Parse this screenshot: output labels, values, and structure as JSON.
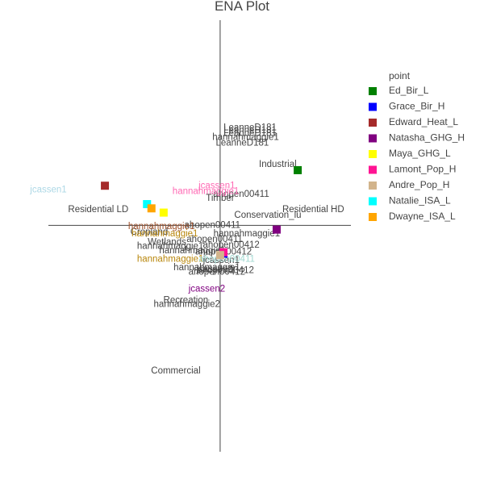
{
  "chart_data": {
    "type": "scatter",
    "title": "ENA Plot",
    "xlabel": "",
    "ylabel": "",
    "xlim": [
      -1.55,
      1.18
    ],
    "ylim": [
      -1.6,
      1.45
    ],
    "grid": false,
    "legend_position": "right",
    "legend_title": "point",
    "series": [
      {
        "name": "Ed_Bir_L",
        "color": "#008000",
        "x": 0.7,
        "y": 0.39
      },
      {
        "name": "Grace_Bir_H",
        "color": "#0000ff",
        "x": 0.03,
        "y": -0.2
      },
      {
        "name": "Edward_Heat_L",
        "color": "#a52a2a",
        "x": -1.04,
        "y": 0.28
      },
      {
        "name": "Natasha_GHG_H",
        "color": "#800080",
        "x": 0.51,
        "y": -0.03
      },
      {
        "name": "Maya_GHG_L",
        "color": "#ffff00",
        "x": -0.51,
        "y": 0.09
      },
      {
        "name": "Lamont_Pop_H",
        "color": "#ff1493",
        "x": 0.03,
        "y": -0.19
      },
      {
        "name": "Andre_Pop_H",
        "color": "#d2b48c",
        "x": 0.0,
        "y": -0.21
      },
      {
        "name": "Natalie_ISA_L",
        "color": "#00ffff",
        "x": -0.66,
        "y": 0.15
      },
      {
        "name": "Dwayne_ISA_L",
        "color": "#ffa500",
        "x": -0.62,
        "y": 0.12
      }
    ],
    "node_labels": [
      {
        "text": "LeanneD181",
        "x": 0.27,
        "y": 0.69
      },
      {
        "text": "LeanneD181",
        "x": 0.27,
        "y": 0.67
      },
      {
        "text": "LeanneD181",
        "x": 0.27,
        "y": 0.65
      },
      {
        "text": "hannahmaggie1",
        "x": 0.23,
        "y": 0.62
      },
      {
        "text": "LeanneD181",
        "x": 0.2,
        "y": 0.58
      },
      {
        "text": "Industrial",
        "x": 0.52,
        "y": 0.43
      },
      {
        "text": "Timber",
        "x": 0.0,
        "y": 0.19
      },
      {
        "text": "ahopen00411",
        "x": 0.19,
        "y": 0.22
      },
      {
        "text": "Residential HD",
        "x": 0.84,
        "y": 0.11
      },
      {
        "text": "Conservation_lu",
        "x": 0.43,
        "y": 0.07
      },
      {
        "text": "Residential LD",
        "x": -1.1,
        "y": 0.11
      },
      {
        "text": "Cropland",
        "x": -0.64,
        "y": -0.05
      },
      {
        "text": "ahopen00411",
        "x": -0.07,
        "y": 0.0
      },
      {
        "text": "hannahmaggie1",
        "x": 0.24,
        "y": -0.06
      },
      {
        "text": "Wetlands",
        "x": -0.48,
        "y": -0.12
      },
      {
        "text": "hannahmaggie1",
        "x": -0.45,
        "y": -0.15
      },
      {
        "text": "ahopen00412",
        "x": 0.1,
        "y": -0.14
      },
      {
        "text": "ahopen00411",
        "x": -0.05,
        "y": -0.1
      },
      {
        "text": "hannahmaggie1",
        "x": -0.25,
        "y": -0.18
      },
      {
        "text": "ahopen00412",
        "x": 0.03,
        "y": -0.19
      },
      {
        "text": "jcassen1",
        "x": 0.01,
        "y": -0.25
      },
      {
        "text": "hannahmaggie1",
        "x": -0.12,
        "y": -0.3
      },
      {
        "text": "jcassen2",
        "x": -0.05,
        "y": -0.31
      },
      {
        "text": "ahopen00412",
        "x": -0.03,
        "y": -0.33
      },
      {
        "text": "ahopen00412",
        "x": 0.05,
        "y": -0.32
      },
      {
        "text": "Recreation",
        "x": -0.31,
        "y": -0.53
      },
      {
        "text": "hannahmaggie2",
        "x": -0.3,
        "y": -0.56
      },
      {
        "text": "Commercial",
        "x": -0.4,
        "y": -1.03
      }
    ],
    "person_labels": [
      {
        "text": "jcassen1",
        "color": "#add8e6",
        "x": -1.55,
        "y": 0.25
      },
      {
        "text": "jcassen1",
        "color": "#ff69b4",
        "x": -0.03,
        "y": 0.28
      },
      {
        "text": "hannahmaggie1",
        "color": "#ff69b4",
        "x": -0.13,
        "y": 0.24
      },
      {
        "text": "hannahmaggie1",
        "color": "#a0522d",
        "x": -0.53,
        "y": -0.01
      },
      {
        "text": "hannahmaggie1",
        "color": "#b8860b",
        "x": -0.5,
        "y": -0.06
      },
      {
        "text": "hannahmaggie1",
        "color": "#b8860b",
        "x": -0.45,
        "y": -0.24
      },
      {
        "text": "ahopen00411",
        "color": "#a0d8d0",
        "x": 0.06,
        "y": -0.24
      },
      {
        "text": "jcassen2",
        "color": "#800080",
        "x": -0.12,
        "y": -0.45
      }
    ]
  }
}
